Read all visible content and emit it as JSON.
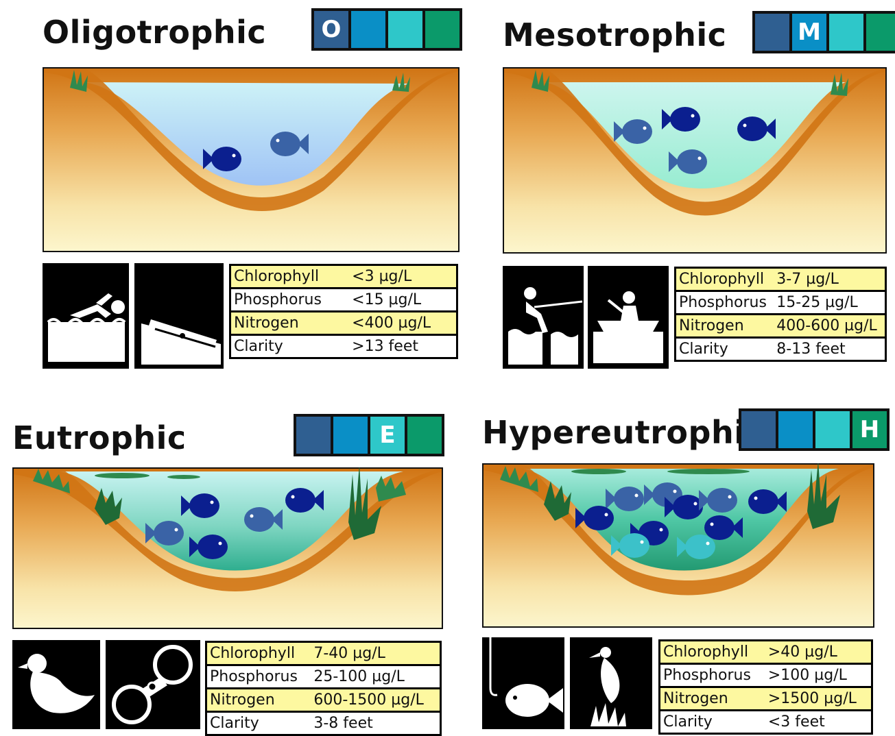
{
  "colors": {
    "scale": [
      "#2f5f91",
      "#0a8fc6",
      "#2ec7c9",
      "#0b9a6a"
    ],
    "soil_dark": "#d07414",
    "soil_light": "#fbf2c2",
    "fish_dark": "#0b1f8f",
    "fish_mid": "#3a63a6",
    "fish_light": "#3cc1c9",
    "grass": "#2f8a4e",
    "highlight_row": "#fdf8a0"
  },
  "panels": [
    {
      "id": "oligotrophic",
      "title": "Oligotrophic",
      "scale_letter": "O",
      "active_index": 0,
      "water": "clear-blue",
      "icons": [
        "swimmer-icon",
        "boat-launch-icon"
      ],
      "stats": [
        {
          "label": "Chlorophyll",
          "value": "<3 µg/L"
        },
        {
          "label": "Phosphorus",
          "value": "<15 µg/L"
        },
        {
          "label": "Nitrogen",
          "value": "<400 µg/L"
        },
        {
          "label": "Clarity",
          "value": ">13 feet"
        }
      ]
    },
    {
      "id": "mesotrophic",
      "title": "Mesotrophic",
      "scale_letter": "M",
      "active_index": 1,
      "water": "light-green",
      "icons": [
        "water-skier-icon",
        "canoe-icon"
      ],
      "stats": [
        {
          "label": "Chlorophyll",
          "value": "3-7 µg/L"
        },
        {
          "label": "Phosphorus",
          "value": "15-25 µg/L"
        },
        {
          "label": "Nitrogen",
          "value": "400-600 µg/L"
        },
        {
          "label": "Clarity",
          "value": "8-13 feet"
        }
      ]
    },
    {
      "id": "eutrophic",
      "title": "Eutrophic",
      "scale_letter": "E",
      "active_index": 2,
      "water": "green",
      "icons": [
        "duck-icon",
        "binoculars-icon"
      ],
      "stats": [
        {
          "label": "Chlorophyll",
          "value": "7-40 µg/L"
        },
        {
          "label": "Phosphorus",
          "value": "25-100 µg/L"
        },
        {
          "label": "Nitrogen",
          "value": "600-1500 µg/L"
        },
        {
          "label": "Clarity",
          "value": "3-8 feet"
        }
      ]
    },
    {
      "id": "hypereutrophic",
      "title": "Hypereutrophic",
      "scale_letter": "H",
      "active_index": 3,
      "water": "dense-green",
      "icons": [
        "fishing-hook-icon",
        "heron-icon"
      ],
      "stats": [
        {
          "label": "Chlorophyll",
          "value": ">40 µg/L"
        },
        {
          "label": "Phosphorus",
          "value": ">100 µg/L"
        },
        {
          "label": "Nitrogen",
          "value": ">1500 µg/L"
        },
        {
          "label": "Clarity",
          "value": "<3 feet"
        }
      ]
    }
  ]
}
